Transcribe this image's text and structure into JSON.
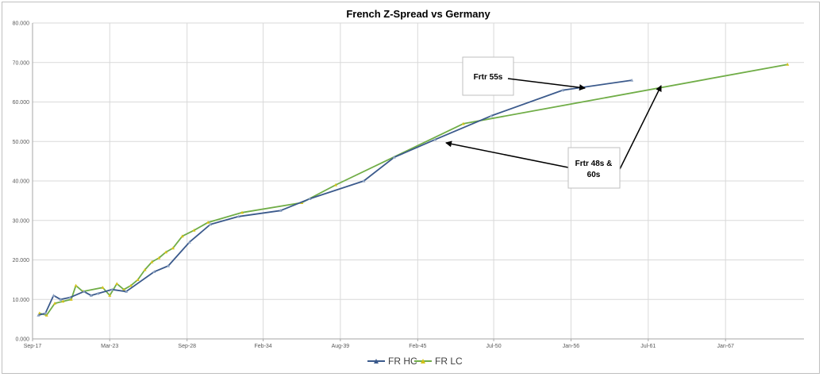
{
  "chart_data": {
    "type": "line",
    "title": "French Z-Spread vs Germany",
    "xlabel": "",
    "ylabel": "",
    "ylim": [
      0,
      80
    ],
    "y_ticks": [
      "0.000",
      "10.000",
      "20.000",
      "30.000",
      "40.000",
      "50.000",
      "60.000",
      "70.000",
      "80.000"
    ],
    "x_ticks": [
      "Sep-17",
      "Mar-23",
      "Sep-28",
      "Feb-34",
      "Aug-39",
      "Feb-45",
      "Jul-50",
      "Jan-56",
      "Jul-61",
      "Jan-67"
    ],
    "xlim": [
      "2017-09-01",
      "2072-08-01"
    ],
    "grid": true,
    "legend_position": "bottom",
    "series": [
      {
        "name": "FR HC",
        "color": "#3b5a8c",
        "points": [
          [
            "2018-02-01",
            6.0
          ],
          [
            "2018-08-01",
            6.5
          ],
          [
            "2019-03-01",
            11.0
          ],
          [
            "2019-09-01",
            10.0
          ],
          [
            "2020-05-01",
            10.5
          ],
          [
            "2021-05-01",
            12.0
          ],
          [
            "2021-11-01",
            11.0
          ],
          [
            "2022-05-01",
            11.5
          ],
          [
            "2023-05-01",
            12.5
          ],
          [
            "2024-05-01",
            12.0
          ],
          [
            "2026-05-01",
            17.0
          ],
          [
            "2027-05-01",
            18.5
          ],
          [
            "2028-11-01",
            24.5
          ],
          [
            "2030-05-01",
            29.0
          ],
          [
            "2032-05-01",
            31.0
          ],
          [
            "2035-05-01",
            32.5
          ],
          [
            "2037-06-01",
            35.5
          ],
          [
            "2041-04-01",
            40.0
          ],
          [
            "2043-06-01",
            46.0
          ],
          [
            "2046-05-01",
            50.5
          ],
          [
            "2050-05-01",
            56.5
          ],
          [
            "2055-06-01",
            63.0
          ],
          [
            "2060-05-01",
            65.5
          ]
        ]
      },
      {
        "name": "FR LC",
        "color": "#70ad47",
        "points": [
          [
            "2018-03-01",
            6.5
          ],
          [
            "2018-09-01",
            6.0
          ],
          [
            "2019-04-01",
            9.0
          ],
          [
            "2019-11-01",
            9.5
          ],
          [
            "2020-06-01",
            10.0
          ],
          [
            "2020-10-01",
            13.5
          ],
          [
            "2021-04-01",
            12.0
          ],
          [
            "2022-09-01",
            13.0
          ],
          [
            "2023-03-01",
            11.0
          ],
          [
            "2023-09-01",
            14.0
          ],
          [
            "2024-03-01",
            12.5
          ],
          [
            "2024-09-01",
            13.5
          ],
          [
            "2025-03-01",
            15.0
          ],
          [
            "2025-09-01",
            17.5
          ],
          [
            "2026-03-01",
            19.5
          ],
          [
            "2026-09-01",
            20.5
          ],
          [
            "2027-03-01",
            22.0
          ],
          [
            "2027-09-01",
            23.0
          ],
          [
            "2028-05-01",
            26.0
          ],
          [
            "2029-03-01",
            27.5
          ],
          [
            "2030-03-01",
            29.5
          ],
          [
            "2032-08-01",
            32.0
          ],
          [
            "2036-11-01",
            34.5
          ],
          [
            "2039-04-01",
            39.0
          ],
          [
            "2048-05-01",
            54.5
          ],
          [
            "2071-06-01",
            69.5
          ]
        ]
      }
    ],
    "annotations": [
      {
        "text_lines": [
          "Frtr 55s"
        ]
      },
      {
        "text_lines": [
          "Frtr 48s &",
          "60s"
        ]
      }
    ]
  },
  "colors": {
    "grid": "#d9d9d9",
    "axis": "#a6a6a6",
    "arrow": "#000000",
    "callout_border": "#bfbfbf"
  }
}
